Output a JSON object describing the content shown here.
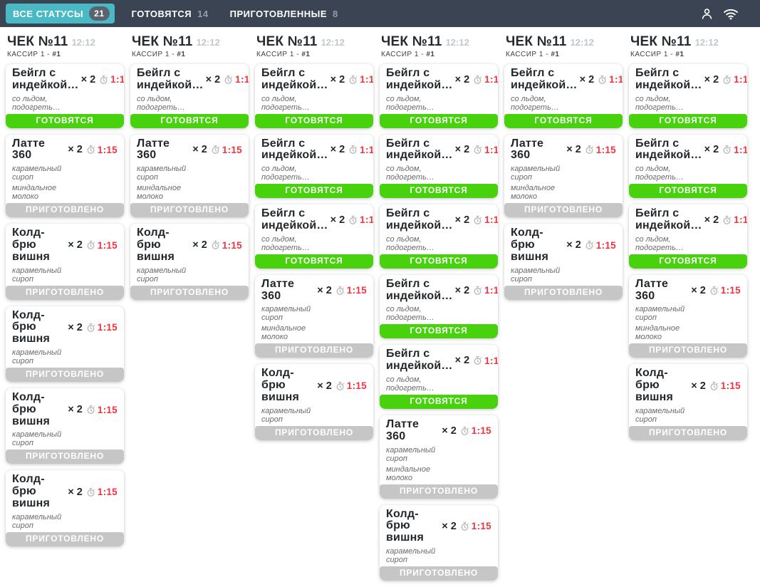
{
  "colors": {
    "header_bg": "#3a4452",
    "active_tab_bg": "#4ab9c6",
    "badge_bg": "#5a6470",
    "preparing_green": "#47d20d",
    "done_gray": "#c6c6c6",
    "timer_red": "#f4323e"
  },
  "header": {
    "tabs": [
      {
        "id": "all-statuses",
        "label": "ВСЕ СТАТУСЫ",
        "count": "21",
        "active": true
      },
      {
        "id": "preparing",
        "label": "ГОТОВЯТСЯ",
        "count": "14",
        "active": false
      },
      {
        "id": "done",
        "label": "ПРИГОТОВЛЕННЫЕ",
        "count": "8",
        "active": false
      }
    ],
    "icons": [
      {
        "name": "user-icon"
      },
      {
        "name": "wifi-icon"
      }
    ]
  },
  "defaults": {
    "qty": "× 2",
    "timer": "1:15"
  },
  "statuses": {
    "preparing": {
      "label": "ГОТОВЯТСЯ"
    },
    "done": {
      "label": "ПРИГОТОВЛЕНО"
    }
  },
  "products": {
    "bagel": {
      "name": "Бейгл с индейкой…",
      "modifiers": [
        [
          "со льдом,",
          "подогреть…"
        ]
      ]
    },
    "latte": {
      "name": "Латте 360",
      "modifiers": [
        [
          "карамельный",
          "сироп"
        ],
        [
          "миндальное",
          "молоко"
        ]
      ]
    },
    "coldbrew": {
      "name": "Колд-брю вишня",
      "modifiers": [
        [
          "карамельный",
          "сироп"
        ]
      ]
    }
  },
  "columns": [
    {
      "check": "ЧЕК №11",
      "time": "12:12",
      "cashier": "КАССИР 1 -",
      "order": "#1",
      "cards": [
        {
          "product": "bagel",
          "status": "preparing"
        },
        {
          "product": "latte",
          "status": "done"
        },
        {
          "product": "coldbrew",
          "status": "done"
        },
        {
          "product": "coldbrew",
          "status": "done"
        },
        {
          "product": "coldbrew",
          "status": "done"
        },
        {
          "product": "coldbrew",
          "status": "done"
        }
      ]
    },
    {
      "check": "ЧЕК №11",
      "time": "12:12",
      "cashier": "КАССИР 1 -",
      "order": "#1",
      "cards": [
        {
          "product": "bagel",
          "status": "preparing"
        },
        {
          "product": "latte",
          "status": "done"
        },
        {
          "product": "coldbrew",
          "status": "done"
        }
      ]
    },
    {
      "check": "ЧЕК №11",
      "time": "12:12",
      "cashier": "КАССИР 1 -",
      "order": "#1",
      "cards": [
        {
          "product": "bagel",
          "status": "preparing"
        },
        {
          "product": "bagel",
          "status": "preparing"
        },
        {
          "product": "bagel",
          "status": "preparing"
        },
        {
          "product": "latte",
          "status": "done"
        },
        {
          "product": "coldbrew",
          "status": "done"
        }
      ]
    },
    {
      "check": "ЧЕК №11",
      "time": "12:12",
      "cashier": "КАССИР 1 -",
      "order": "#1",
      "cards": [
        {
          "product": "bagel",
          "status": "preparing"
        },
        {
          "product": "bagel",
          "status": "preparing"
        },
        {
          "product": "bagel",
          "status": "preparing"
        },
        {
          "product": "bagel",
          "status": "preparing"
        },
        {
          "product": "bagel",
          "status": "preparing"
        },
        {
          "product": "latte",
          "status": "done"
        },
        {
          "product": "coldbrew",
          "status": "done"
        }
      ]
    },
    {
      "check": "ЧЕК №11",
      "time": "12:12",
      "cashier": "КАССИР 1 -",
      "order": "#1",
      "cards": [
        {
          "product": "bagel",
          "status": "preparing"
        },
        {
          "product": "latte",
          "status": "done"
        },
        {
          "product": "coldbrew",
          "status": "done"
        }
      ]
    },
    {
      "check": "ЧЕК №11",
      "time": "12:12",
      "cashier": "КАССИР 1 -",
      "order": "#1",
      "cards": [
        {
          "product": "bagel",
          "status": "preparing"
        },
        {
          "product": "bagel",
          "status": "preparing"
        },
        {
          "product": "bagel",
          "status": "preparing"
        },
        {
          "product": "latte",
          "status": "done"
        },
        {
          "product": "coldbrew",
          "status": "done"
        }
      ]
    }
  ]
}
